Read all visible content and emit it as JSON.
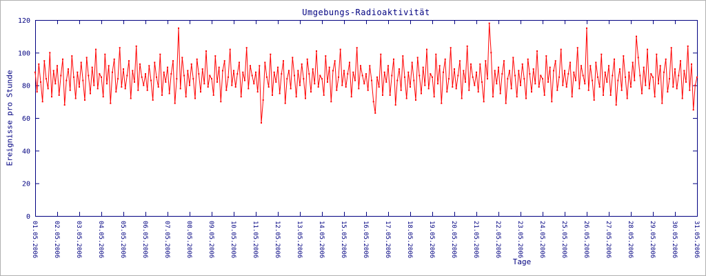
{
  "window": {
    "background": "#ffffff",
    "border_color": "#b0b0b0"
  },
  "chart_data": {
    "type": "line",
    "title": "Umgebungs-Radioaktivität",
    "xlabel": "Tage",
    "ylabel": "Ereignisse pro Stunde",
    "ylim": [
      0,
      120
    ],
    "yticks": [
      0,
      20,
      40,
      60,
      80,
      100,
      120
    ],
    "x_tick_labels": [
      "01.05.2006",
      "02.05.2006",
      "03.05.2006",
      "04.05.2006",
      "05.05.2006",
      "06.05.2006",
      "07.05.2006",
      "08.05.2006",
      "09.05.2006",
      "10.05.2006",
      "11.05.2006",
      "12.05.2006",
      "13.05.2006",
      "14.05.2006",
      "15.05.2006",
      "16.05.2006",
      "17.05.2006",
      "18.05.2006",
      "19.05.2006",
      "20.05.2006",
      "21.05.2006",
      "22.05.2006",
      "23.05.2006",
      "24.05.2006",
      "25.05.2006",
      "26.05.2006",
      "27.05.2006",
      "28.05.2006",
      "29.05.2006",
      "30.05.2006",
      "31.05.2006"
    ],
    "grid": false,
    "legend": "none",
    "axis_color": "#000080",
    "series_color": "#ff0000",
    "values": [
      88,
      76,
      93,
      82,
      70,
      95,
      84,
      78,
      100,
      73,
      89,
      81,
      92,
      74,
      86,
      96,
      68,
      83,
      90,
      77,
      98,
      85,
      72,
      88,
      79,
      94,
      83,
      71,
      97,
      86,
      75,
      91,
      80,
      102,
      78,
      87,
      85,
      73,
      99,
      81,
      92,
      69,
      88,
      96,
      76,
      84,
      103,
      79,
      90,
      78,
      86,
      95,
      72,
      89,
      82,
      104,
      77,
      93,
      85,
      80,
      87,
      77,
      92,
      83,
      71,
      94,
      85,
      79,
      99,
      74,
      88,
      82,
      91,
      75,
      87,
      95,
      69,
      84,
      115,
      78,
      97,
      86,
      73,
      89,
      80,
      93,
      84,
      72,
      96,
      87,
      76,
      90,
      81,
      101,
      79,
      86,
      84,
      74,
      98,
      82,
      91,
      70,
      89,
      95,
      77,
      85,
      102,
      80,
      89,
      79,
      87,
      94,
      73,
      88,
      83,
      103,
      78,
      92,
      86,
      81,
      88,
      76,
      92,
      57,
      71,
      94,
      85,
      79,
      99,
      74,
      88,
      82,
      91,
      75,
      87,
      95,
      69,
      84,
      89,
      78,
      97,
      86,
      73,
      89,
      80,
      93,
      84,
      72,
      96,
      87,
      76,
      90,
      81,
      101,
      79,
      86,
      84,
      74,
      98,
      82,
      91,
      70,
      89,
      95,
      77,
      85,
      102,
      80,
      89,
      79,
      87,
      94,
      73,
      88,
      83,
      103,
      78,
      92,
      86,
      81,
      87,
      77,
      92,
      83,
      70,
      63,
      85,
      79,
      99,
      74,
      88,
      82,
      92,
      74,
      86,
      96,
      68,
      83,
      90,
      77,
      98,
      85,
      72,
      88,
      79,
      94,
      83,
      71,
      97,
      86,
      75,
      91,
      80,
      102,
      78,
      87,
      85,
      73,
      99,
      81,
      92,
      69,
      88,
      96,
      76,
      84,
      103,
      79,
      90,
      78,
      86,
      95,
      72,
      89,
      82,
      104,
      77,
      93,
      85,
      80,
      88,
      76,
      93,
      82,
      70,
      95,
      84,
      118,
      100,
      73,
      89,
      81,
      91,
      75,
      87,
      95,
      69,
      84,
      89,
      78,
      97,
      86,
      73,
      89,
      80,
      93,
      84,
      72,
      96,
      87,
      76,
      90,
      81,
      101,
      79,
      86,
      84,
      74,
      98,
      82,
      91,
      70,
      89,
      95,
      77,
      85,
      102,
      80,
      89,
      79,
      87,
      94,
      73,
      88,
      83,
      103,
      78,
      92,
      86,
      81,
      115,
      77,
      92,
      83,
      71,
      94,
      85,
      79,
      99,
      74,
      88,
      82,
      92,
      74,
      86,
      96,
      68,
      83,
      90,
      77,
      98,
      85,
      72,
      88,
      79,
      94,
      83,
      110,
      97,
      86,
      75,
      91,
      80,
      102,
      78,
      87,
      85,
      73,
      99,
      81,
      92,
      69,
      88,
      96,
      76,
      84,
      103,
      79,
      90,
      78,
      86,
      95,
      72,
      89,
      82,
      104,
      77,
      93,
      65,
      80,
      85
    ]
  }
}
